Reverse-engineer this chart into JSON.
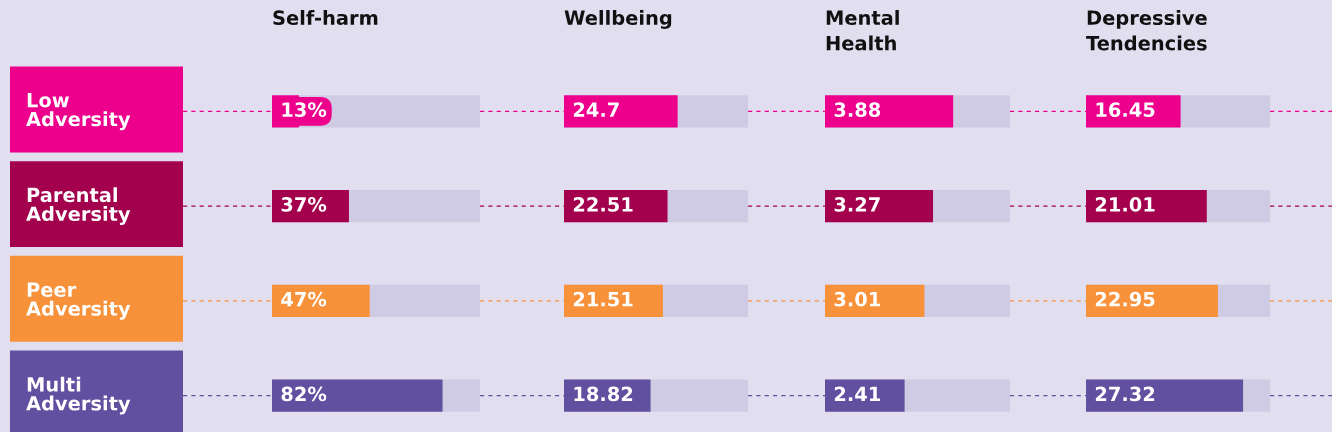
{
  "chart_data": [
    {
      "type": "bar",
      "orientation": "horizontal",
      "title": "Self-harm",
      "categories": [
        "Low\nAdversity",
        "Parental\nAdversity",
        "Peer\nAdversity",
        "Multi\nAdversity"
      ],
      "values": [
        13,
        37,
        47,
        82
      ],
      "value_labels": [
        "13%",
        "37%",
        "47%",
        "82%"
      ],
      "colors": [
        "#ec008c",
        "#a3004d",
        "#f7923b",
        "#614fa0"
      ],
      "xlim": [
        0,
        100
      ],
      "tick_labels": "y"
    },
    {
      "type": "bar",
      "orientation": "horizontal",
      "title": "Wellbeing",
      "categories": [
        null,
        null,
        null,
        null
      ],
      "values": [
        24.7,
        22.51,
        21.51,
        18.82
      ],
      "data_labels": true,
      "colors": [
        "#ec008c",
        "#a3004d",
        "#f7923b",
        "#614fa0"
      ],
      "xlim": [
        0,
        40
      ],
      "tick_labels": false
    },
    {
      "type": "bar",
      "orientation": "horizontal",
      "title": "Mental\nHealth",
      "categories": [
        null,
        null,
        null,
        null
      ],
      "values": [
        3.88,
        3.27,
        3.01,
        2.41
      ],
      "data_labels": true,
      "colors": [
        "#ec008c",
        "#a3004d",
        "#f7923b",
        "#614fa0"
      ],
      "xlim": [
        0,
        5.6
      ],
      "tick_labels": false
    },
    {
      "type": "bar",
      "orientation": "horizontal",
      "title": "Depressive\nTendencies",
      "categories": [
        null,
        null,
        null,
        null
      ],
      "values": [
        16.45,
        21.01,
        22.95,
        27.32
      ],
      "data_labels": true,
      "colors": [
        "#ec008c",
        "#a3004d",
        "#f7923b",
        "#614fa0"
      ],
      "xlim": [
        0,
        32
      ],
      "tick_labels": false
    }
  ]
}
